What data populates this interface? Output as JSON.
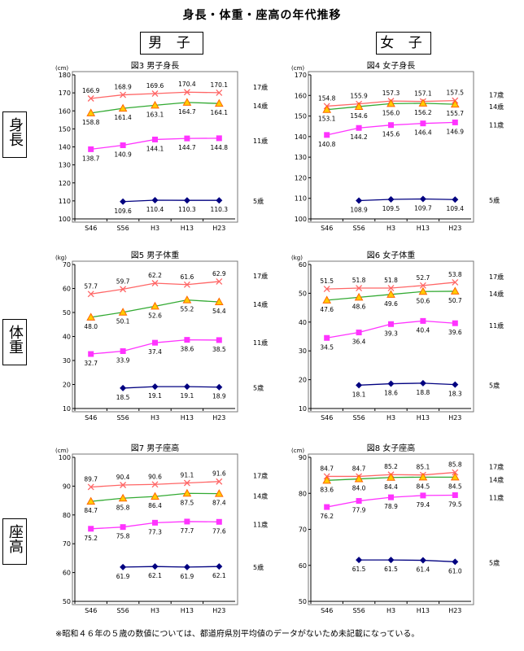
{
  "title": "身長・体重・座高の年代推移",
  "column_headers": [
    "男 子",
    "女 子"
  ],
  "row_headers": [
    "身長",
    "体重",
    "座高"
  ],
  "footnote": "※昭和４６年の５歳の数値については、都道府県別平均値のデータがないため未記載になっている。",
  "series_colors": {
    "17歳": "#ff6666",
    "14歳": "#33aa33",
    "11歳": "#ff33ff",
    "5歳": "#000080"
  },
  "chart_data": [
    {
      "type": "line",
      "title": "図3 男子身長",
      "unit": "(cm)",
      "categories": [
        "S46",
        "S56",
        "H3",
        "H13",
        "H23"
      ],
      "ylim": [
        100,
        180
      ],
      "ytick_step": 10,
      "grid": false,
      "series": [
        {
          "name": "17歳",
          "values": [
            166.9,
            168.9,
            169.6,
            170.4,
            170.1
          ]
        },
        {
          "name": "14歳",
          "values": [
            158.8,
            161.4,
            163.1,
            164.7,
            164.1
          ]
        },
        {
          "name": "11歳",
          "values": [
            138.7,
            140.9,
            144.1,
            144.7,
            144.8
          ]
        },
        {
          "name": "5歳",
          "values": [
            null,
            109.6,
            110.4,
            110.3,
            110.3
          ]
        }
      ]
    },
    {
      "type": "line",
      "title": "図4 女子身長",
      "unit": "(cm)",
      "categories": [
        "S46",
        "S56",
        "H3",
        "H13",
        "H23"
      ],
      "ylim": [
        100,
        170
      ],
      "ytick_step": 10,
      "grid": false,
      "series": [
        {
          "name": "17歳",
          "values": [
            154.8,
            155.9,
            157.3,
            157.1,
            157.5
          ]
        },
        {
          "name": "14歳",
          "values": [
            153.1,
            154.6,
            156.0,
            156.2,
            155.7
          ]
        },
        {
          "name": "11歳",
          "values": [
            140.8,
            144.2,
            145.6,
            146.4,
            146.9
          ]
        },
        {
          "name": "5歳",
          "values": [
            null,
            108.9,
            109.5,
            109.7,
            109.4
          ]
        }
      ]
    },
    {
      "type": "line",
      "title": "図5 男子体重",
      "unit": "(kg)",
      "categories": [
        "S46",
        "S56",
        "H3",
        "H13",
        "H23"
      ],
      "ylim": [
        10,
        70
      ],
      "ytick_step": 10,
      "grid": false,
      "series": [
        {
          "name": "17歳",
          "values": [
            57.7,
            59.7,
            62.2,
            61.6,
            62.9
          ]
        },
        {
          "name": "14歳",
          "values": [
            48.0,
            50.1,
            52.6,
            55.2,
            54.4
          ]
        },
        {
          "name": "11歳",
          "values": [
            32.7,
            33.9,
            37.4,
            38.6,
            38.5
          ]
        },
        {
          "name": "5歳",
          "values": [
            null,
            18.5,
            19.1,
            19.1,
            18.9
          ]
        }
      ]
    },
    {
      "type": "line",
      "title": "図6 女子体重",
      "unit": "(kg)",
      "categories": [
        "S46",
        "S56",
        "H3",
        "H13",
        "H23"
      ],
      "ylim": [
        10,
        60
      ],
      "ytick_step": 10,
      "grid": false,
      "series": [
        {
          "name": "17歳",
          "values": [
            51.5,
            51.8,
            51.8,
            52.7,
            53.8
          ]
        },
        {
          "name": "14歳",
          "values": [
            47.6,
            48.6,
            49.6,
            50.6,
            50.7
          ]
        },
        {
          "name": "11歳",
          "values": [
            34.5,
            36.4,
            39.3,
            40.4,
            39.6
          ]
        },
        {
          "name": "5歳",
          "values": [
            null,
            18.1,
            18.6,
            18.8,
            18.3
          ]
        }
      ]
    },
    {
      "type": "line",
      "title": "図7 男子座高",
      "unit": "(cm)",
      "categories": [
        "S46",
        "S56",
        "H3",
        "H13",
        "H23"
      ],
      "ylim": [
        50,
        100
      ],
      "ytick_step": 10,
      "grid": false,
      "series": [
        {
          "name": "17歳",
          "values": [
            89.7,
            90.4,
            90.6,
            91.1,
            91.6
          ]
        },
        {
          "name": "14歳",
          "values": [
            84.7,
            85.8,
            86.4,
            87.5,
            87.4
          ]
        },
        {
          "name": "11歳",
          "values": [
            75.2,
            75.8,
            77.3,
            77.7,
            77.6
          ]
        },
        {
          "name": "5歳",
          "values": [
            null,
            61.9,
            62.1,
            61.9,
            62.1
          ]
        }
      ]
    },
    {
      "type": "line",
      "title": "図8 女子座高",
      "unit": "(cm)",
      "categories": [
        "S46",
        "S56",
        "H3",
        "H13",
        "H23"
      ],
      "ylim": [
        50,
        90
      ],
      "ytick_step": 10,
      "grid": false,
      "series": [
        {
          "name": "17歳",
          "values": [
            84.7,
            84.7,
            85.2,
            85.1,
            85.8
          ]
        },
        {
          "name": "14歳",
          "values": [
            83.6,
            84.0,
            84.4,
            84.5,
            84.5
          ]
        },
        {
          "name": "11歳",
          "values": [
            76.2,
            77.9,
            78.9,
            79.4,
            79.5
          ]
        },
        {
          "name": "5歳",
          "values": [
            null,
            61.5,
            61.5,
            61.4,
            61.0
          ]
        }
      ]
    }
  ]
}
